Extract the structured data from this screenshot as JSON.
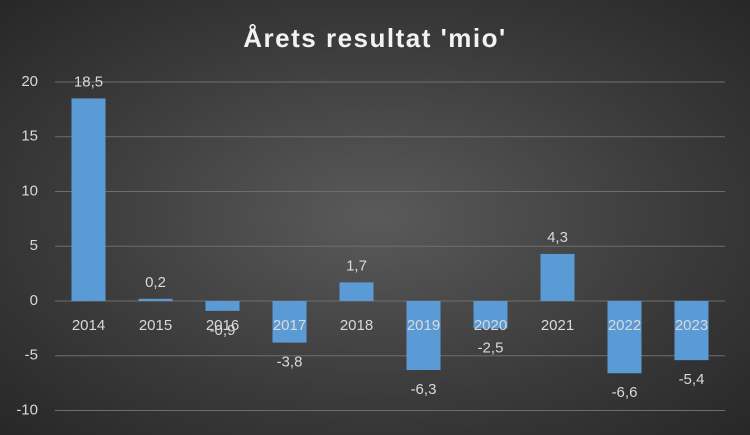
{
  "chart_data": {
    "type": "bar",
    "title": "Årets resultat 'mio'",
    "categories": [
      "2014",
      "2015",
      "2016",
      "2017",
      "2018",
      "2019",
      "2020",
      "2021",
      "2022",
      "2023"
    ],
    "values": [
      18.5,
      0.2,
      -0.9,
      -3.8,
      1.7,
      -6.3,
      -2.5,
      4.3,
      -6.6,
      -5.4
    ],
    "value_labels": [
      "18,5",
      "0,2",
      "-0,9",
      "-3,8",
      "1,7",
      "-6,3",
      "-2,5",
      "4,3",
      "-6,6",
      "-5,4"
    ],
    "color": "#5b9bd5",
    "ylim": [
      -10,
      20
    ],
    "yticks": [
      -10,
      -5,
      0,
      5,
      10,
      15,
      20
    ],
    "grid": true
  }
}
